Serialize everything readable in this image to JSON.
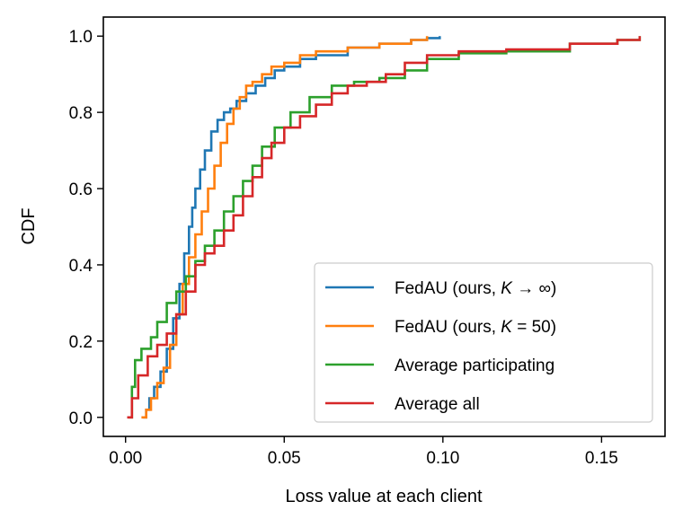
{
  "chart_data": {
    "type": "line",
    "title": "",
    "xlabel": "Loss value at each client",
    "ylabel": "CDF",
    "xlim": [
      -0.007,
      0.17
    ],
    "ylim": [
      -0.05,
      1.05
    ],
    "xticks": [
      0.0,
      0.05,
      0.1,
      0.15
    ],
    "xtick_labels": [
      "0.00",
      "0.05",
      "0.10",
      "0.15"
    ],
    "yticks": [
      0.0,
      0.2,
      0.4,
      0.6,
      0.8,
      1.0
    ],
    "ytick_labels": [
      "0.0",
      "0.2",
      "0.4",
      "0.6",
      "0.8",
      "1.0"
    ],
    "grid": false,
    "legend_position": "bottom-right",
    "series": [
      {
        "name": "FedAU (ours, K → ∞)",
        "legend_prefix": "FedAU (ours, ",
        "legend_var": "K",
        "legend_suffix": " → ∞)",
        "color": "#1f77b4",
        "x": [
          0.0055,
          0.0065,
          0.0075,
          0.009,
          0.011,
          0.013,
          0.015,
          0.017,
          0.0185,
          0.02,
          0.021,
          0.022,
          0.0235,
          0.025,
          0.027,
          0.029,
          0.031,
          0.033,
          0.035,
          0.038,
          0.041,
          0.044,
          0.047,
          0.05,
          0.055,
          0.06,
          0.07,
          0.08,
          0.09,
          0.095,
          0.099
        ],
        "y": [
          0.0,
          0.02,
          0.05,
          0.08,
          0.12,
          0.18,
          0.26,
          0.35,
          0.43,
          0.5,
          0.55,
          0.6,
          0.65,
          0.7,
          0.75,
          0.78,
          0.8,
          0.81,
          0.83,
          0.85,
          0.87,
          0.89,
          0.91,
          0.92,
          0.94,
          0.95,
          0.97,
          0.98,
          0.99,
          0.995,
          1.0
        ]
      },
      {
        "name": "FedAU (ours, K = 50)",
        "legend_prefix": "FedAU (ours, ",
        "legend_var": "K",
        "legend_suffix": " = 50)",
        "color": "#ff7f0e",
        "x": [
          0.005,
          0.0065,
          0.008,
          0.01,
          0.012,
          0.014,
          0.016,
          0.018,
          0.02,
          0.022,
          0.024,
          0.026,
          0.028,
          0.03,
          0.032,
          0.034,
          0.036,
          0.038,
          0.04,
          0.043,
          0.046,
          0.05,
          0.055,
          0.06,
          0.07,
          0.08,
          0.09,
          0.095
        ],
        "y": [
          0.0,
          0.02,
          0.05,
          0.09,
          0.13,
          0.19,
          0.27,
          0.35,
          0.42,
          0.48,
          0.54,
          0.6,
          0.66,
          0.72,
          0.77,
          0.81,
          0.84,
          0.87,
          0.88,
          0.9,
          0.92,
          0.93,
          0.95,
          0.96,
          0.97,
          0.98,
          0.99,
          1.0
        ]
      },
      {
        "name": "Average participating",
        "color": "#2ca02c",
        "x": [
          0.001,
          0.002,
          0.003,
          0.005,
          0.008,
          0.01,
          0.013,
          0.016,
          0.019,
          0.022,
          0.025,
          0.028,
          0.031,
          0.034,
          0.037,
          0.04,
          0.043,
          0.047,
          0.052,
          0.058,
          0.065,
          0.072,
          0.08,
          0.088,
          0.095,
          0.105,
          0.12,
          0.14,
          0.155,
          0.162
        ],
        "y": [
          0.0,
          0.08,
          0.15,
          0.18,
          0.21,
          0.25,
          0.3,
          0.33,
          0.37,
          0.41,
          0.45,
          0.49,
          0.54,
          0.58,
          0.62,
          0.66,
          0.71,
          0.76,
          0.8,
          0.84,
          0.87,
          0.88,
          0.89,
          0.91,
          0.94,
          0.955,
          0.96,
          0.98,
          0.99,
          1.0
        ]
      },
      {
        "name": "Average all",
        "color": "#d62728",
        "x": [
          0.0005,
          0.002,
          0.004,
          0.007,
          0.01,
          0.013,
          0.016,
          0.019,
          0.022,
          0.025,
          0.028,
          0.031,
          0.034,
          0.037,
          0.04,
          0.043,
          0.046,
          0.05,
          0.055,
          0.06,
          0.065,
          0.07,
          0.076,
          0.082,
          0.088,
          0.095,
          0.105,
          0.12,
          0.14,
          0.155,
          0.162
        ],
        "y": [
          0.0,
          0.05,
          0.11,
          0.16,
          0.19,
          0.22,
          0.27,
          0.33,
          0.4,
          0.43,
          0.45,
          0.49,
          0.53,
          0.58,
          0.63,
          0.68,
          0.72,
          0.76,
          0.79,
          0.82,
          0.85,
          0.87,
          0.88,
          0.9,
          0.93,
          0.95,
          0.96,
          0.965,
          0.98,
          0.99,
          1.0
        ]
      }
    ]
  }
}
